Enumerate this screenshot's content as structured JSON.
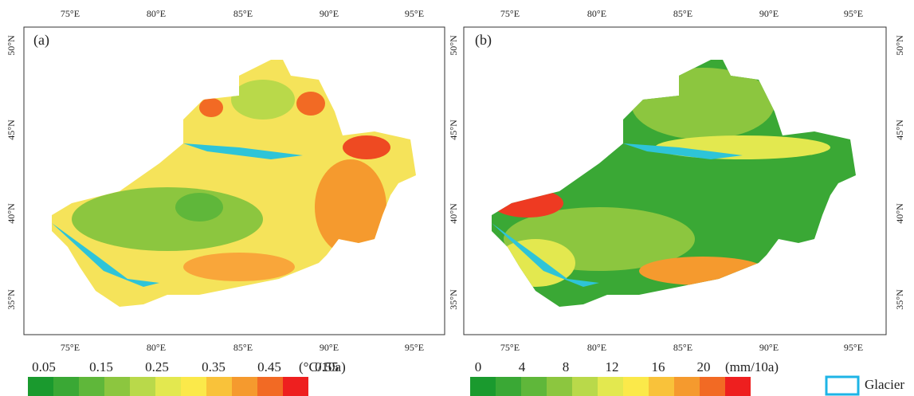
{
  "panels": [
    {
      "label": "(a)",
      "x_ticks": [
        "75°E",
        "80°E",
        "85°E",
        "90°E",
        "95°E"
      ],
      "y_ticks": [
        "50°N",
        "45°N",
        "40°N",
        "35°N"
      ],
      "colorbar": {
        "labels": [
          "0.05",
          "0.15",
          "0.25",
          "0.35",
          "0.45",
          "0.55"
        ],
        "unit": "(°C/10a)",
        "colors": [
          "#1a9a2e",
          "#3aa835",
          "#5fb73a",
          "#8cc63f",
          "#b9d94a",
          "#e3e84f",
          "#fbe94a",
          "#f9c23a",
          "#f59a2e",
          "#f26a24",
          "#ee1f1f"
        ]
      }
    },
    {
      "label": "(b)",
      "x_ticks": [
        "75°E",
        "80°E",
        "85°E",
        "90°E",
        "95°E"
      ],
      "y_ticks": [
        "50°N",
        "45°N",
        "40°N",
        "35°N"
      ],
      "colorbar": {
        "labels": [
          "0",
          "4",
          "8",
          "12",
          "16",
          "20"
        ],
        "unit": "(mm/10a)",
        "colors": [
          "#1a9a2e",
          "#3aa835",
          "#5fb73a",
          "#8cc63f",
          "#b9d94a",
          "#e3e84f",
          "#fbe94a",
          "#f9c23a",
          "#f59a2e",
          "#f26a24",
          "#ee1f1f"
        ]
      }
    }
  ],
  "legend": {
    "glacier": "Glacier"
  }
}
